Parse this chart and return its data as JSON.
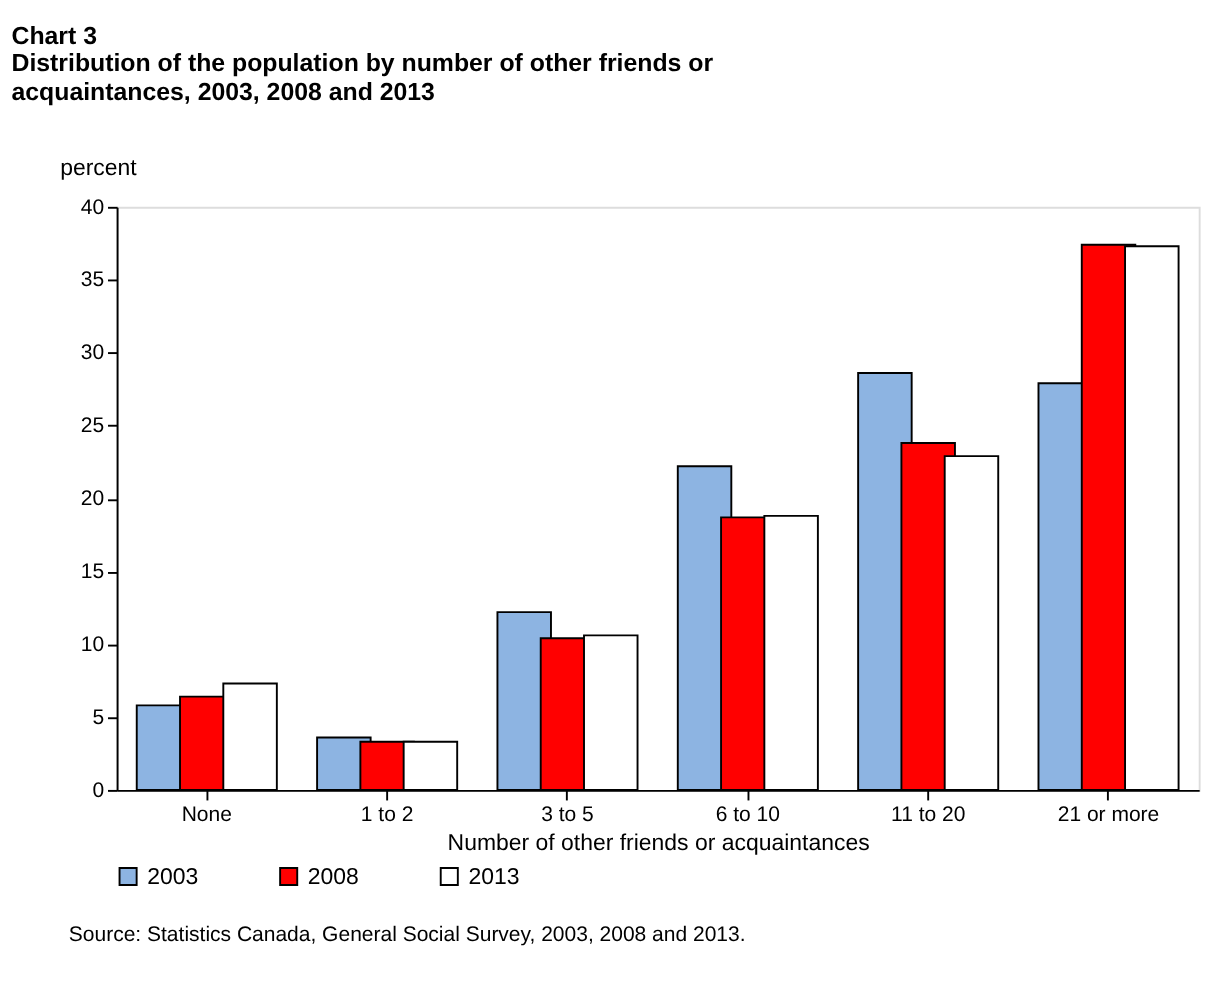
{
  "chart_data": {
    "type": "bar",
    "title": "Chart 3",
    "subtitle": "Distribution of the population by number of other friends or acquaintances, 2003, 2008 and 2013",
    "xlabel": "Number of other friends or acquaintances",
    "ylabel": "percent",
    "categories": [
      "None",
      "1 to 2",
      "3 to 5",
      "6 to 10",
      "11 to 20",
      "21 or more"
    ],
    "series": [
      {
        "name": "2003",
        "color": "#8db4e2",
        "values": [
          5.8,
          3.6,
          12.2,
          22.2,
          28.6,
          27.9
        ]
      },
      {
        "name": "2008",
        "color": "#ff0000",
        "values": [
          6.4,
          3.3,
          10.4,
          18.7,
          23.8,
          37.4
        ]
      },
      {
        "name": "2013",
        "color": "#ffffff",
        "values": [
          7.3,
          3.3,
          10.6,
          18.8,
          22.9,
          37.3
        ]
      }
    ],
    "ylim": [
      0,
      40
    ],
    "yticks": [
      0,
      5,
      10,
      15,
      20,
      25,
      30,
      35,
      40
    ],
    "grid": false,
    "legend": "bottom",
    "annotations": [
      "Source: Statistics Canada, General Social Survey, 2003, 2008 and 2013."
    ]
  }
}
